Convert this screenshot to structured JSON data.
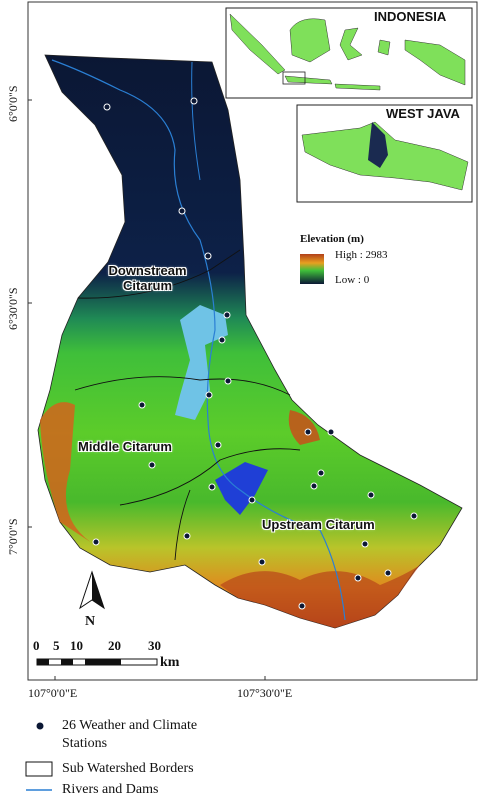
{
  "map": {
    "graticule": {
      "lat_labels": [
        "6°0'0\"S",
        "6°30'0\"S",
        "7°0'0\"S"
      ],
      "lon_labels": [
        "107°0'0\"E",
        "107°30'0\"E"
      ]
    },
    "insets": {
      "indonesia": "INDONESIA",
      "west_java": "WEST JAVA"
    },
    "elevation_legend": {
      "title": "Elevation (m)",
      "high": "High : 2983",
      "low": "Low : 0"
    },
    "regions": [
      "Downstream Citarum",
      "Middle Citarum",
      "Upstream Citarum"
    ],
    "north": "N",
    "scale_bar": {
      "labels": [
        0,
        5,
        10,
        20,
        30
      ],
      "unit": "km"
    },
    "legend": [
      "26 Weather and Climate Stations",
      "Sub Watershed Borders",
      "Rivers and Dams"
    ]
  }
}
